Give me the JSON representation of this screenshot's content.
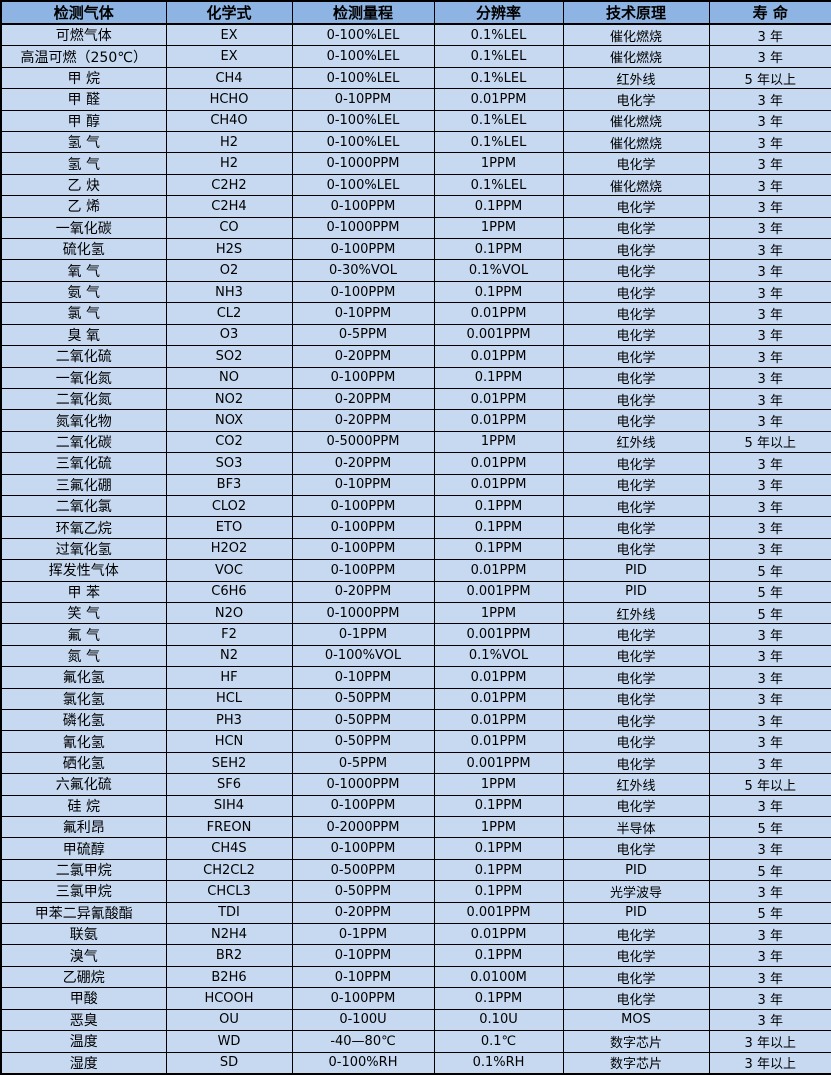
{
  "colors": {
    "header_bg": "#8DB4E2",
    "row_bg": "#C6D9F1",
    "border": "#000000",
    "text": "#000000"
  },
  "table": {
    "headers": [
      "检测气体",
      "化学式",
      "检测量程",
      "分辨率",
      "技术原理",
      "寿 命"
    ],
    "columns_order": [
      "gas",
      "formula",
      "range",
      "resolution",
      "principle",
      "lifespan"
    ],
    "rows": [
      {
        "gas": "可燃气体",
        "formula": "EX",
        "range": "0-100%LEL",
        "resolution": "0.1%LEL",
        "principle": "催化燃烧",
        "lifespan": "3 年"
      },
      {
        "gas": "高温可燃（250℃）",
        "formula": "EX",
        "range": "0-100%LEL",
        "resolution": "0.1%LEL",
        "principle": "催化燃烧",
        "lifespan": "3 年"
      },
      {
        "gas": "甲 烷",
        "formula": "CH4",
        "range": "0-100%LEL",
        "resolution": "0.1%LEL",
        "principle": "红外线",
        "lifespan": "5 年以上"
      },
      {
        "gas": "甲 醛",
        "formula": "HCHO",
        "range": "0-10PPM",
        "resolution": "0.01PPM",
        "principle": "电化学",
        "lifespan": "3 年"
      },
      {
        "gas": "甲 醇",
        "formula": "CH4O",
        "range": "0-100%LEL",
        "resolution": "0.1%LEL",
        "principle": "催化燃烧",
        "lifespan": "3 年"
      },
      {
        "gas": "氢 气",
        "formula": "H2",
        "range": "0-100%LEL",
        "resolution": "0.1%LEL",
        "principle": "催化燃烧",
        "lifespan": "3 年"
      },
      {
        "gas": "氢 气",
        "formula": "H2",
        "range": "0-1000PPM",
        "resolution": "1PPM",
        "principle": "电化学",
        "lifespan": "3 年"
      },
      {
        "gas": "乙 炔",
        "formula": "C2H2",
        "range": "0-100%LEL",
        "resolution": "0.1%LEL",
        "principle": "催化燃烧",
        "lifespan": "3 年"
      },
      {
        "gas": "乙 烯",
        "formula": "C2H4",
        "range": "0-100PPM",
        "resolution": "0.1PPM",
        "principle": "电化学",
        "lifespan": "3 年"
      },
      {
        "gas": "一氧化碳",
        "formula": "CO",
        "range": "0-1000PPM",
        "resolution": "1PPM",
        "principle": "电化学",
        "lifespan": "3 年"
      },
      {
        "gas": "硫化氢",
        "formula": "H2S",
        "range": "0-100PPM",
        "resolution": "0.1PPM",
        "principle": "电化学",
        "lifespan": "3 年"
      },
      {
        "gas": "氧 气",
        "formula": "O2",
        "range": "0-30%VOL",
        "resolution": "0.1%VOL",
        "principle": "电化学",
        "lifespan": "3 年"
      },
      {
        "gas": "氨 气",
        "formula": "NH3",
        "range": "0-100PPM",
        "resolution": "0.1PPM",
        "principle": "电化学",
        "lifespan": "3 年"
      },
      {
        "gas": "氯 气",
        "formula": "CL2",
        "range": "0-10PPM",
        "resolution": "0.01PPM",
        "principle": "电化学",
        "lifespan": "3 年"
      },
      {
        "gas": "臭 氧",
        "formula": "O3",
        "range": "0-5PPM",
        "resolution": "0.001PPM",
        "principle": "电化学",
        "lifespan": "3 年"
      },
      {
        "gas": "二氧化硫",
        "formula": "SO2",
        "range": "0-20PPM",
        "resolution": "0.01PPM",
        "principle": "电化学",
        "lifespan": "3 年"
      },
      {
        "gas": "一氧化氮",
        "formula": "NO",
        "range": "0-100PPM",
        "resolution": "0.1PPM",
        "principle": "电化学",
        "lifespan": "3 年"
      },
      {
        "gas": "二氧化氮",
        "formula": "NO2",
        "range": "0-20PPM",
        "resolution": "0.01PPM",
        "principle": "电化学",
        "lifespan": "3 年"
      },
      {
        "gas": "氮氧化物",
        "formula": "NOX",
        "range": "0-20PPM",
        "resolution": "0.01PPM",
        "principle": "电化学",
        "lifespan": "3 年"
      },
      {
        "gas": "二氧化碳",
        "formula": "CO2",
        "range": "0-5000PPM",
        "resolution": "1PPM",
        "principle": "红外线",
        "lifespan": "5 年以上"
      },
      {
        "gas": "三氧化硫",
        "formula": "SO3",
        "range": "0-20PPM",
        "resolution": "0.01PPM",
        "principle": "电化学",
        "lifespan": "3 年"
      },
      {
        "gas": "三氟化硼",
        "formula": "BF3",
        "range": "0-10PPM",
        "resolution": "0.01PPM",
        "principle": "电化学",
        "lifespan": "3 年"
      },
      {
        "gas": "二氧化氯",
        "formula": "CLO2",
        "range": "0-100PPM",
        "resolution": "0.1PPM",
        "principle": "电化学",
        "lifespan": "3 年"
      },
      {
        "gas": "环氧乙烷",
        "formula": "ETO",
        "range": "0-100PPM",
        "resolution": "0.1PPM",
        "principle": "电化学",
        "lifespan": "3 年"
      },
      {
        "gas": "过氧化氢",
        "formula": "H2O2",
        "range": "0-100PPM",
        "resolution": "0.1PPM",
        "principle": "电化学",
        "lifespan": "3 年"
      },
      {
        "gas": "挥发性气体",
        "formula": "VOC",
        "range": "0-100PPM",
        "resolution": "0.01PPM",
        "principle": "PID",
        "lifespan": "5 年"
      },
      {
        "gas": "甲 苯",
        "formula": "C6H6",
        "range": "0-20PPM",
        "resolution": "0.001PPM",
        "principle": "PID",
        "lifespan": "5 年"
      },
      {
        "gas": "笑 气",
        "formula": "N2O",
        "range": "0-1000PPM",
        "resolution": "1PPM",
        "principle": "红外线",
        "lifespan": "5 年"
      },
      {
        "gas": "氟 气",
        "formula": "F2",
        "range": "0-1PPM",
        "resolution": "0.001PPM",
        "principle": "电化学",
        "lifespan": "3 年"
      },
      {
        "gas": "氮 气",
        "formula": "N2",
        "range": "0-100%VOL",
        "resolution": "0.1%VOL",
        "principle": "电化学",
        "lifespan": "3 年"
      },
      {
        "gas": "氟化氢",
        "formula": "HF",
        "range": "0-10PPM",
        "resolution": "0.01PPM",
        "principle": "电化学",
        "lifespan": "3 年"
      },
      {
        "gas": "氯化氢",
        "formula": "HCL",
        "range": "0-50PPM",
        "resolution": "0.01PPM",
        "principle": "电化学",
        "lifespan": "3 年"
      },
      {
        "gas": "磷化氢",
        "formula": "PH3",
        "range": "0-50PPM",
        "resolution": "0.01PPM",
        "principle": "电化学",
        "lifespan": "3 年"
      },
      {
        "gas": "氰化氢",
        "formula": "HCN",
        "range": "0-50PPM",
        "resolution": "0.01PPM",
        "principle": "电化学",
        "lifespan": "3 年"
      },
      {
        "gas": "硒化氢",
        "formula": "SEH2",
        "range": "0-5PPM",
        "resolution": "0.001PPM",
        "principle": "电化学",
        "lifespan": "3 年"
      },
      {
        "gas": "六氟化硫",
        "formula": "SF6",
        "range": "0-1000PPM",
        "resolution": "1PPM",
        "principle": "红外线",
        "lifespan": "5 年以上"
      },
      {
        "gas": "硅 烷",
        "formula": "SIH4",
        "range": "0-100PPM",
        "resolution": "0.1PPM",
        "principle": "电化学",
        "lifespan": "3 年"
      },
      {
        "gas": "氟利昂",
        "formula": "FREON",
        "range": "0-2000PPM",
        "resolution": "1PPM",
        "principle": "半导体",
        "lifespan": "5 年"
      },
      {
        "gas": "甲硫醇",
        "formula": "CH4S",
        "range": "0-100PPM",
        "resolution": "0.1PPM",
        "principle": "电化学",
        "lifespan": "3 年"
      },
      {
        "gas": "二氯甲烷",
        "formula": "CH2CL2",
        "range": "0-500PPM",
        "resolution": "0.1PPM",
        "principle": "PID",
        "lifespan": "5 年"
      },
      {
        "gas": "三氯甲烷",
        "formula": "CHCL3",
        "range": "0-50PPM",
        "resolution": "0.1PPM",
        "principle": "光学波导",
        "lifespan": "3 年"
      },
      {
        "gas": "甲苯二异氰酸酯",
        "formula": "TDI",
        "range": "0-20PPM",
        "resolution": "0.001PPM",
        "principle": "PID",
        "lifespan": "5 年"
      },
      {
        "gas": "联氨",
        "formula": "N2H4",
        "range": "0-1PPM",
        "resolution": "0.01PPM",
        "principle": "电化学",
        "lifespan": "3 年"
      },
      {
        "gas": "溴气",
        "formula": "BR2",
        "range": "0-10PPM",
        "resolution": "0.1PPM",
        "principle": "电化学",
        "lifespan": "3 年"
      },
      {
        "gas": "乙硼烷",
        "formula": "B2H6",
        "range": "0-10PPM",
        "resolution": "0.0100M",
        "principle": "电化学",
        "lifespan": "3 年"
      },
      {
        "gas": "甲酸",
        "formula": "HCOOH",
        "range": "0-100PPM",
        "resolution": "0.1PPM",
        "principle": "电化学",
        "lifespan": "3 年"
      },
      {
        "gas": "恶臭",
        "formula": "OU",
        "range": "0-100U",
        "resolution": "0.10U",
        "principle": "MOS",
        "lifespan": "3 年"
      },
      {
        "gas": "温度",
        "formula": "WD",
        "range": "-40—80℃",
        "resolution": "0.1℃",
        "principle": "数字芯片",
        "lifespan": "3 年以上"
      },
      {
        "gas": "湿度",
        "formula": "SD",
        "range": "0-100%RH",
        "resolution": "0.1%RH",
        "principle": "数字芯片",
        "lifespan": "3 年以上"
      }
    ]
  }
}
